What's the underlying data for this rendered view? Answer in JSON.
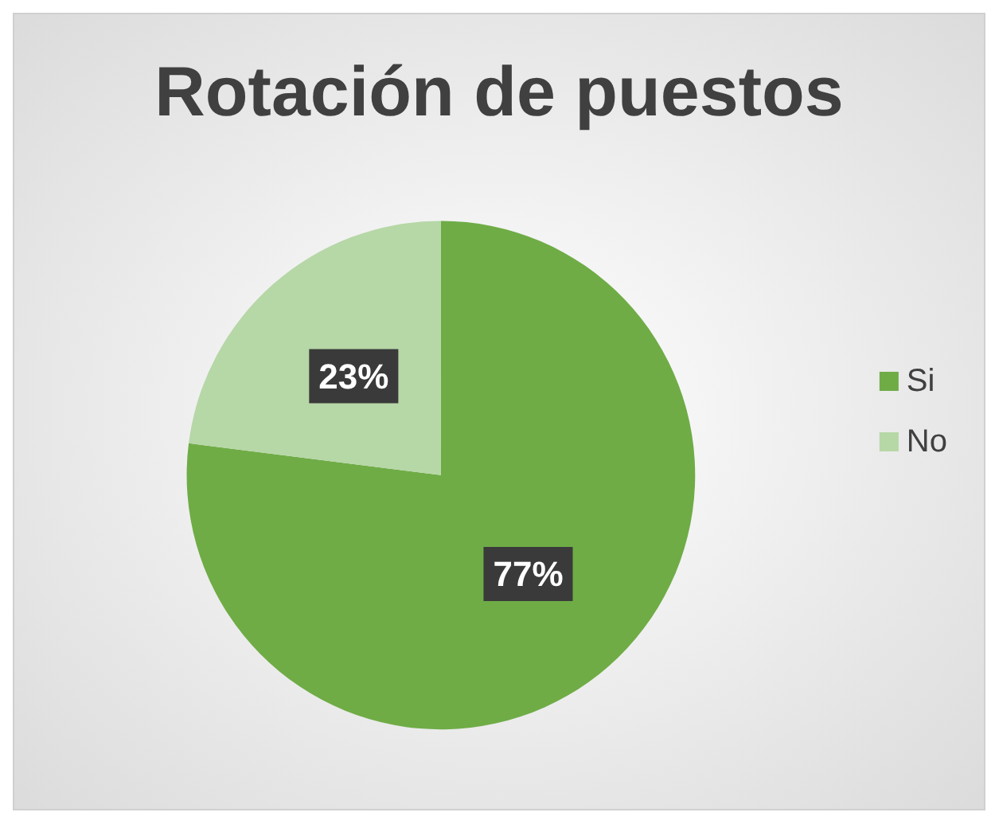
{
  "chart_data": {
    "type": "pie",
    "title": "Rotación de puestos",
    "categories": [
      "Si",
      "No"
    ],
    "values": [
      77,
      23
    ],
    "colors": [
      "#6fac46",
      "#b6d7a6"
    ],
    "value_labels": [
      "77%",
      "23%"
    ],
    "legend": "right"
  }
}
